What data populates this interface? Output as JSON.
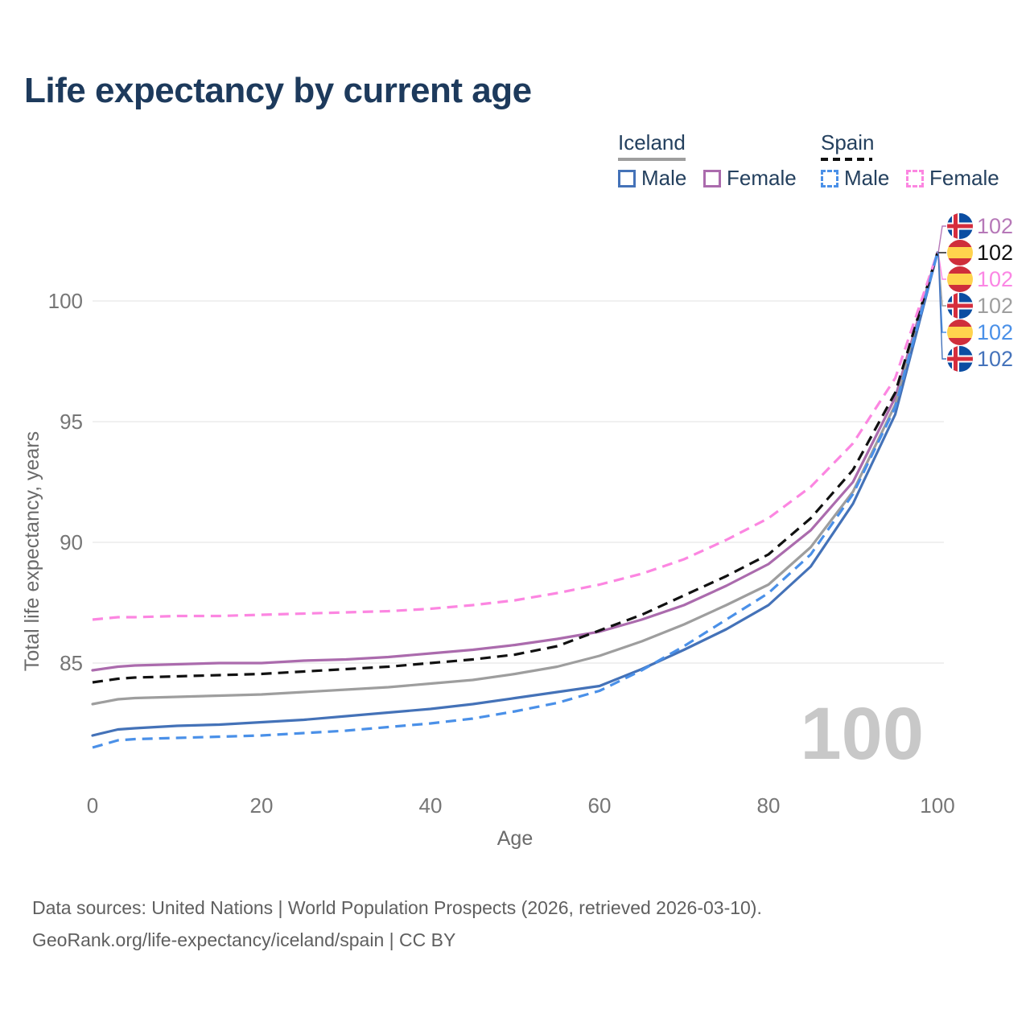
{
  "title": "Life expectancy by current age",
  "watermark_age": "100",
  "legend": {
    "groups": [
      {
        "label": "Iceland",
        "line_style": "solid",
        "underline_color": "#9e9e9e",
        "items": [
          {
            "label": "Male",
            "color": "#4472b8",
            "dashed": false
          },
          {
            "label": "Female",
            "color": "#ab6bad",
            "dashed": false
          }
        ]
      },
      {
        "label": "Spain",
        "line_style": "dashed",
        "underline_color": "#111111",
        "items": [
          {
            "label": "Male",
            "color": "#4a90e8",
            "dashed": true
          },
          {
            "label": "Female",
            "color": "#fc86e1",
            "dashed": true
          }
        ]
      }
    ]
  },
  "footer": {
    "line1": "Data sources: United Nations | World Population Prospects (2026, retrieved 2026-03-10).",
    "line2": "GeoRank.org/life-expectancy/iceland/spain | CC BY"
  },
  "chart_data": {
    "type": "line",
    "title": "Life expectancy by current age",
    "xlabel": "Age",
    "ylabel": "Total life expectancy, years",
    "x": [
      0,
      3,
      5,
      10,
      15,
      20,
      25,
      30,
      35,
      40,
      45,
      50,
      55,
      60,
      65,
      70,
      75,
      80,
      85,
      90,
      95,
      100
    ],
    "xticks": [
      0,
      20,
      40,
      60,
      80,
      100
    ],
    "yticks": [
      85,
      90,
      95,
      100
    ],
    "xlim": [
      0,
      100
    ],
    "ylim": [
      80.5,
      102.5
    ],
    "grid": "horizontal",
    "legend_position": "top-right",
    "colors": {
      "grid": "#ebebeb",
      "tick_text": "#767676",
      "iceland_flag_blue": "#0b4da2",
      "iceland_flag_red": "#d62d3d",
      "spain_flag_red": "#cf2e3b",
      "spain_flag_yellow": "#ffd34d"
    },
    "series": [
      {
        "key": "iceland_female",
        "name": "Iceland Female",
        "color": "#ab6bad",
        "dashed": false,
        "values": [
          84.7,
          84.85,
          84.9,
          84.95,
          85.0,
          85.0,
          85.1,
          85.15,
          85.25,
          85.4,
          85.55,
          85.75,
          86.0,
          86.3,
          86.8,
          87.4,
          88.2,
          89.1,
          90.5,
          92.5,
          96.0,
          102
        ]
      },
      {
        "key": "iceland_both",
        "name": "Iceland Both sexes",
        "color": "#9e9e9e",
        "dashed": false,
        "values": [
          83.3,
          83.5,
          83.55,
          83.6,
          83.65,
          83.7,
          83.8,
          83.9,
          84.0,
          84.15,
          84.3,
          84.55,
          84.85,
          85.3,
          85.9,
          86.6,
          87.4,
          88.25,
          89.8,
          92.1,
          95.7,
          102
        ]
      },
      {
        "key": "iceland_male",
        "name": "Iceland Male",
        "color": "#4472b8",
        "dashed": false,
        "values": [
          82.0,
          82.25,
          82.3,
          82.4,
          82.45,
          82.55,
          82.65,
          82.8,
          82.95,
          83.1,
          83.3,
          83.55,
          83.8,
          84.05,
          84.75,
          85.55,
          86.4,
          87.4,
          89.0,
          91.6,
          95.3,
          102
        ]
      },
      {
        "key": "spain_both",
        "name": "Spain Both sexes",
        "color": "#111111",
        "dashed": true,
        "values": [
          84.2,
          84.35,
          84.4,
          84.45,
          84.5,
          84.55,
          84.65,
          84.75,
          84.85,
          85.0,
          85.15,
          85.35,
          85.7,
          86.35,
          87.0,
          87.8,
          88.6,
          89.5,
          91.0,
          93.0,
          96.2,
          102
        ]
      },
      {
        "key": "spain_female",
        "name": "Spain Female",
        "color": "#fc86e1",
        "dashed": true,
        "values": [
          86.8,
          86.9,
          86.9,
          86.95,
          86.95,
          87.0,
          87.05,
          87.1,
          87.15,
          87.25,
          87.4,
          87.6,
          87.9,
          88.25,
          88.7,
          89.3,
          90.1,
          91.0,
          92.3,
          94.1,
          96.8,
          102
        ]
      },
      {
        "key": "spain_male",
        "name": "Spain Male",
        "color": "#4a90e8",
        "dashed": true,
        "values": [
          81.5,
          81.8,
          81.85,
          81.9,
          81.95,
          82.0,
          82.1,
          82.2,
          82.35,
          82.5,
          82.7,
          83.0,
          83.35,
          83.85,
          84.7,
          85.7,
          86.8,
          87.9,
          89.5,
          92.0,
          95.6,
          102
        ]
      }
    ],
    "end_labels": [
      {
        "series_key": "iceland_female",
        "flag": "iceland",
        "value": "102",
        "color": "#b678b8"
      },
      {
        "series_key": "spain_both",
        "flag": "spain",
        "value": "102",
        "color": "#111111"
      },
      {
        "series_key": "spain_female",
        "flag": "spain",
        "value": "102",
        "color": "#fb86e4"
      },
      {
        "series_key": "iceland_both",
        "flag": "iceland",
        "value": "102",
        "color": "#9e9e9e"
      },
      {
        "series_key": "spain_male",
        "flag": "spain",
        "value": "102",
        "color": "#4a90e8"
      },
      {
        "series_key": "iceland_male",
        "flag": "iceland",
        "value": "102",
        "color": "#4573bb"
      }
    ]
  }
}
